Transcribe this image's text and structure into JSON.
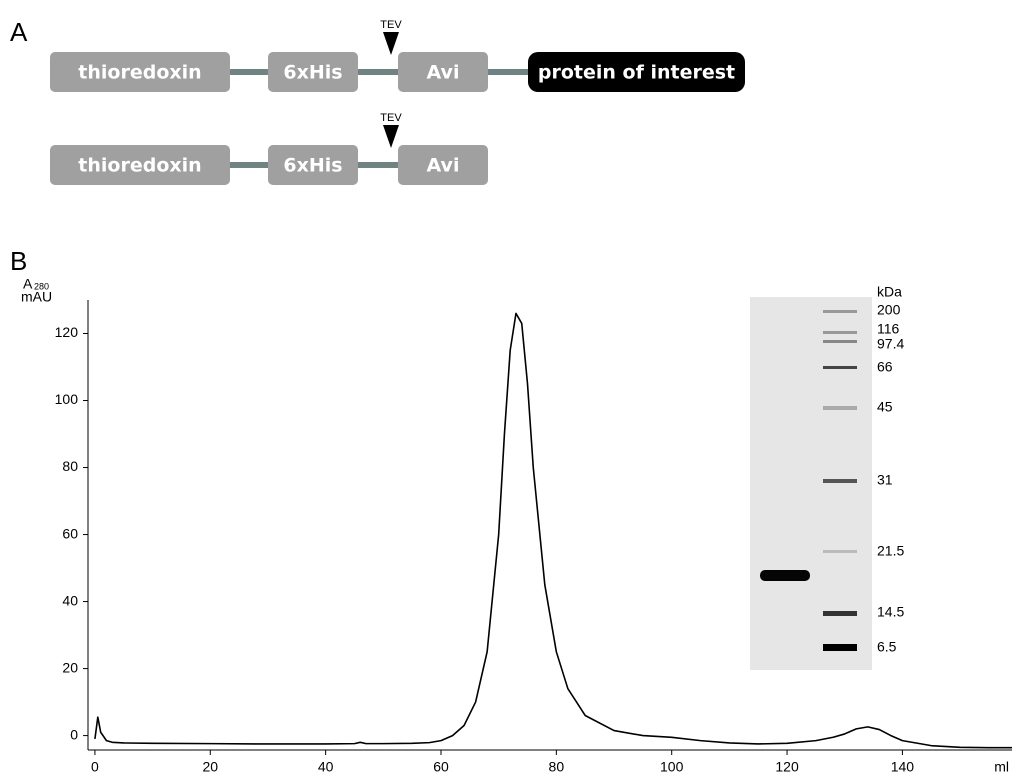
{
  "panel_a": {
    "label": "A",
    "constructs": [
      {
        "domains": [
          "thioredoxin",
          "6xHis",
          "Avi",
          "protein of interest"
        ],
        "site": "TEV"
      },
      {
        "domains": [
          "thioredoxin",
          "6xHis",
          "Avi"
        ],
        "site": "TEV"
      }
    ]
  },
  "panel_b_label": "B",
  "chart_data": {
    "type": "line",
    "y_label": "A",
    "y_label_sub": "280",
    "y_unit": "mAU",
    "x_label": "ml",
    "color": "#000000",
    "x": [
      0,
      0.5,
      1,
      2,
      3,
      5,
      10,
      20,
      30,
      40,
      45,
      46,
      47,
      50,
      55,
      58,
      60,
      62,
      64,
      66,
      68,
      70,
      71,
      72,
      73,
      74,
      75,
      76,
      78,
      80,
      82,
      85,
      90,
      95,
      100,
      105,
      110,
      115,
      120,
      125,
      128,
      130,
      132,
      134,
      136,
      138,
      140,
      145,
      150,
      155,
      159
    ],
    "values": [
      -1,
      5.5,
      1,
      -1.5,
      -2,
      -2.2,
      -2.3,
      -2.4,
      -2.5,
      -2.5,
      -2.4,
      -2,
      -2.4,
      -2.4,
      -2.3,
      -2.1,
      -1.5,
      0,
      3,
      10,
      25,
      60,
      90,
      115,
      126,
      123,
      105,
      80,
      45,
      25,
      14,
      6,
      1.5,
      0,
      -0.5,
      -1.5,
      -2.2,
      -2.5,
      -2.3,
      -1.5,
      -0.5,
      0.5,
      2,
      2.6,
      1.8,
      0,
      -1.5,
      -3,
      -3.5,
      -3.6,
      -3.6
    ],
    "xlim": [
      -1.2,
      159
    ],
    "ylim": [
      -4.3,
      130
    ],
    "xticks": [
      0,
      20,
      40,
      60,
      80,
      100,
      120,
      140
    ],
    "yticks": [
      0,
      20,
      40,
      60,
      80,
      100,
      120
    ],
    "inset": {
      "unit": "kDa",
      "markers": [
        "200",
        "116",
        "97.4",
        "66",
        "45",
        "31",
        "21.5",
        "14.5",
        "6.5"
      ]
    }
  }
}
